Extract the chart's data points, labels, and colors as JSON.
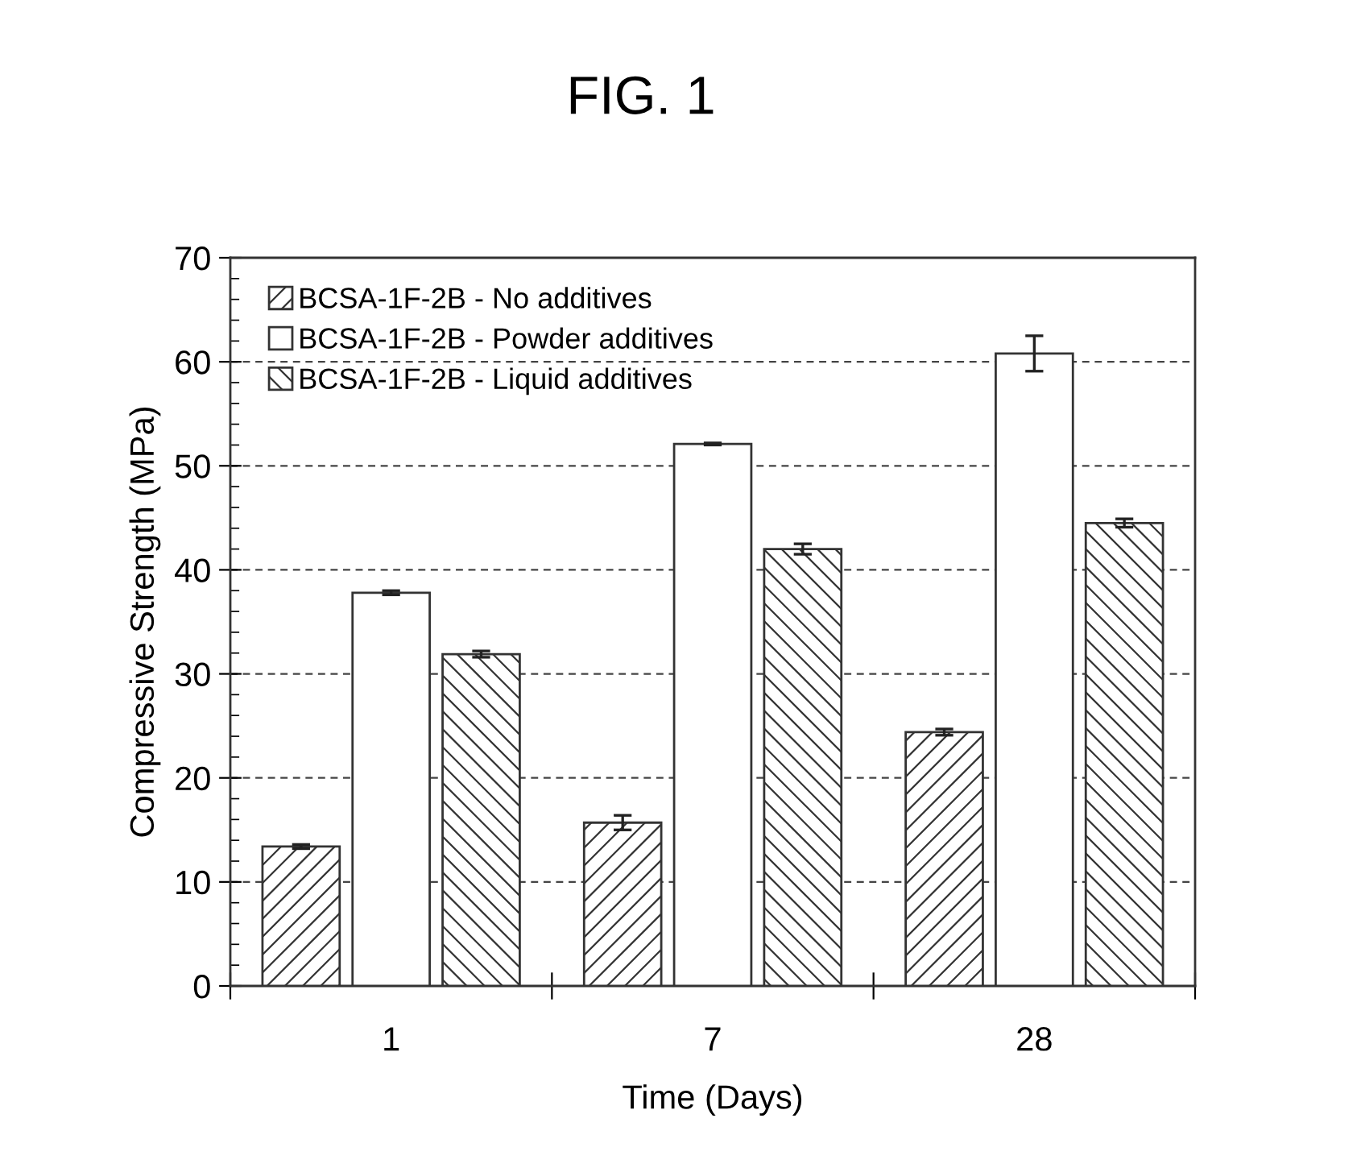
{
  "chart_data": {
    "type": "bar",
    "title": "FIG. 1",
    "xlabel": "Time (Days)",
    "ylabel": "Compressive Strength (MPa)",
    "categories": [
      "1",
      "7",
      "28"
    ],
    "series": [
      {
        "name": "BCSA-1F-2B - No additives",
        "color": "#333333",
        "values": [
          13.4,
          15.7,
          24.4
        ],
        "errors": [
          0.2,
          0.7,
          0.3
        ]
      },
      {
        "name": "BCSA-1F-2B - Powder additives",
        "color": "#ffffff",
        "values": [
          37.8,
          52.1,
          60.8
        ],
        "errors": [
          0.2,
          0.1,
          1.7
        ]
      },
      {
        "name": "BCSA-1F-2B - Liquid additives",
        "color": "#333333",
        "values": [
          31.9,
          42.0,
          44.5
        ],
        "errors": [
          0.3,
          0.5,
          0.4
        ]
      }
    ],
    "ylim": [
      0,
      70
    ],
    "yticks": [
      0,
      {
        "value": 2,
        "label": null
      },
      {
        "value": 4,
        "label": null
      },
      {
        "value": 6,
        "label": null
      },
      {
        "value": 8,
        "label": null
      },
      10,
      {
        "value": 12,
        "label": null
      },
      {
        "value": 14,
        "label": null
      },
      {
        "value": 16,
        "label": null
      },
      {
        "value": 18,
        "label": null
      },
      20,
      {
        "value": 22,
        "label": null
      },
      {
        "value": 24,
        "label": null
      },
      {
        "value": 26,
        "label": null
      },
      {
        "value": 28,
        "label": null
      },
      30,
      {
        "value": 32,
        "label": null
      },
      {
        "value": 34,
        "label": null
      },
      {
        "value": 36,
        "label": null
      },
      {
        "value": 38,
        "label": null
      },
      40,
      {
        "value": 42,
        "label": null
      },
      {
        "value": 44,
        "label": null
      },
      {
        "value": 46,
        "label": null
      },
      {
        "value": 48,
        "label": null
      },
      50,
      {
        "value": 52,
        "label": null
      },
      {
        "value": 54,
        "label": null
      },
      {
        "value": 56,
        "label": null
      },
      {
        "value": 58,
        "label": null
      },
      60,
      {
        "value": 62,
        "label": null
      },
      {
        "value": 64,
        "label": null
      },
      {
        "value": 66,
        "label": null
      },
      {
        "value": 68,
        "label": null
      },
      70
    ],
    "grid": "y",
    "legend": "top left"
  }
}
